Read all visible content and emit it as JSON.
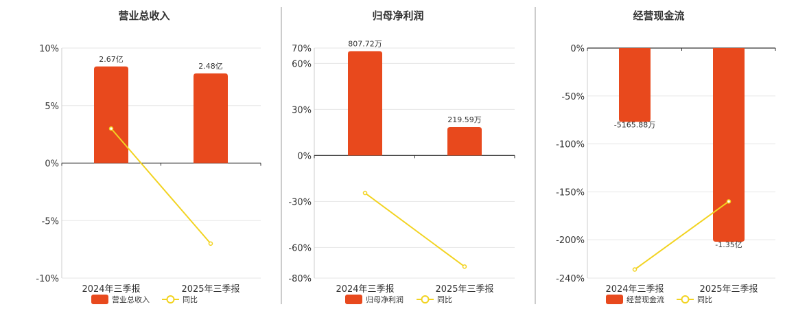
{
  "colors": {
    "bar": "#E8491D",
    "line": "#F2D321",
    "grid": "#E6E6E6",
    "axis": "#333333",
    "divider": "#999999"
  },
  "chart_data": [
    {
      "type": "bar",
      "title": "营业总收入",
      "categories": [
        "2024年三季报",
        "2025年三季报"
      ],
      "bar_series": {
        "name": "营业总收入",
        "values": [
          8.4,
          7.8
        ],
        "labels": [
          "2.67亿",
          "2.48亿"
        ]
      },
      "line_series": {
        "name": "同比",
        "values": [
          3.0,
          -7.0
        ]
      },
      "ylim": [
        -10,
        10
      ],
      "yticks": [
        10,
        5,
        0,
        -5,
        -10
      ],
      "ytick_labels": [
        "10%",
        "5%",
        "0%",
        "-5%",
        "-10%"
      ],
      "grid": true,
      "legend": "bottom"
    },
    {
      "type": "bar",
      "title": "归母净利润",
      "categories": [
        "2024年三季报",
        "2025年三季报"
      ],
      "bar_series": {
        "name": "归母净利润",
        "values": [
          68,
          18.5
        ],
        "labels": [
          "807.72万",
          "219.59万"
        ]
      },
      "line_series": {
        "name": "同比",
        "values": [
          -24.5,
          -72.5
        ]
      },
      "ylim": [
        -80,
        70
      ],
      "yticks": [
        70,
        60,
        30,
        0,
        -30,
        -60,
        -80
      ],
      "ytick_labels": [
        "70%",
        "60%",
        "30%",
        "0%",
        "-30%",
        "-60%",
        "-80%"
      ],
      "grid": true,
      "legend": "bottom"
    },
    {
      "type": "bar",
      "title": "经营现金流",
      "categories": [
        "2024年三季报",
        "2025年三季报"
      ],
      "bar_series": {
        "name": "经营现金流",
        "values": [
          -77,
          -202
        ],
        "labels": [
          "-5165.88万",
          "-1.35亿"
        ]
      },
      "line_series": {
        "name": "同比",
        "values": [
          -231,
          -160
        ]
      },
      "ylim": [
        -240,
        0
      ],
      "yticks": [
        0,
        -50,
        -100,
        -150,
        -200,
        -240
      ],
      "ytick_labels": [
        "0%",
        "-50%",
        "-100%",
        "-150%",
        "-200%",
        "-240%"
      ],
      "grid": true,
      "legend": "bottom"
    }
  ]
}
